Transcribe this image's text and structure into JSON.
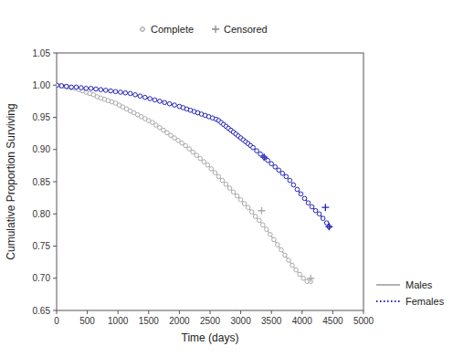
{
  "chart_data": {
    "type": "line",
    "x_label": "Time (days)",
    "y_label": "Cumulative Proportion Surviving",
    "xlim": [
      0,
      5000
    ],
    "ylim": [
      0.65,
      1.05
    ],
    "xticks": [
      0,
      500,
      1000,
      1500,
      2000,
      2500,
      3000,
      3500,
      4000,
      4500,
      5000
    ],
    "yticks": [
      0.65,
      {
        "value": 0.7,
        "label": "0.70"
      },
      0.75,
      {
        "value": 0.8,
        "label": "0.80"
      },
      0.85,
      {
        "value": 0.9,
        "label": "0.90"
      },
      0.95,
      {
        "value": 1.0,
        "label": "1.00"
      },
      1.05
    ],
    "grid": false,
    "legend": "right",
    "legend_markers": [
      {
        "label": "Complete",
        "marker": "circle"
      },
      {
        "label": "Censored",
        "marker": "plus"
      }
    ],
    "series": [
      {
        "name": "Males",
        "color": "#aaaaaa",
        "line_style": "solid",
        "marker": "circle",
        "x": [
          0,
          60,
          120,
          180,
          240,
          300,
          360,
          420,
          480,
          540,
          600,
          660,
          720,
          780,
          840,
          900,
          960,
          1020,
          1080,
          1140,
          1200,
          1260,
          1320,
          1380,
          1440,
          1500,
          1560,
          1620,
          1680,
          1740,
          1800,
          1860,
          1920,
          1980,
          2040,
          2100,
          2160,
          2220,
          2280,
          2340,
          2400,
          2460,
          2520,
          2580,
          2640,
          2700,
          2760,
          2820,
          2880,
          2940,
          3000,
          3060,
          3120,
          3180,
          3240,
          3300,
          3360,
          3420,
          3480,
          3540,
          3600,
          3660,
          3720,
          3780,
          3840,
          3900,
          3960,
          4020,
          4080,
          4140
        ],
        "values": [
          1.0,
          0.999,
          0.998,
          0.997,
          0.996,
          0.995,
          0.993,
          0.991,
          0.989,
          0.987,
          0.985,
          0.982,
          0.98,
          0.978,
          0.976,
          0.974,
          0.972,
          0.969,
          0.966,
          0.963,
          0.96,
          0.957,
          0.954,
          0.951,
          0.948,
          0.945,
          0.942,
          0.938,
          0.934,
          0.93,
          0.926,
          0.922,
          0.918,
          0.914,
          0.91,
          0.906,
          0.901,
          0.896,
          0.891,
          0.886,
          0.881,
          0.876,
          0.87,
          0.864,
          0.858,
          0.852,
          0.846,
          0.84,
          0.834,
          0.828,
          0.822,
          0.816,
          0.81,
          0.803,
          0.796,
          0.79,
          0.783,
          0.776,
          0.768,
          0.76,
          0.752,
          0.744,
          0.736,
          0.728,
          0.72,
          0.713,
          0.706,
          0.7,
          0.695,
          0.695
        ],
        "censored_x": [
          3340,
          4140
        ],
        "censored_values": [
          0.805,
          0.7
        ]
      },
      {
        "name": "Females",
        "color": "#2222bb",
        "line_style": "dotted",
        "marker": "circle",
        "x": [
          0,
          80,
          160,
          240,
          320,
          400,
          480,
          560,
          640,
          720,
          800,
          880,
          960,
          1040,
          1120,
          1200,
          1280,
          1360,
          1440,
          1520,
          1600,
          1680,
          1760,
          1840,
          1920,
          2000,
          2060,
          2120,
          2180,
          2240,
          2300,
          2360,
          2420,
          2480,
          2540,
          2600,
          2640,
          2680,
          2720,
          2760,
          2800,
          2840,
          2880,
          2920,
          2960,
          3000,
          3040,
          3080,
          3120,
          3160,
          3200,
          3260,
          3320,
          3380,
          3440,
          3500,
          3560,
          3620,
          3680,
          3740,
          3800,
          3860,
          3920,
          3980,
          4040,
          4100,
          4160,
          4220,
          4280,
          4340,
          4400,
          4440
        ],
        "values": [
          1.0,
          0.999,
          0.998,
          0.997,
          0.997,
          0.996,
          0.995,
          0.995,
          0.994,
          0.993,
          0.992,
          0.991,
          0.99,
          0.989,
          0.988,
          0.987,
          0.985,
          0.983,
          0.981,
          0.979,
          0.977,
          0.975,
          0.973,
          0.971,
          0.969,
          0.967,
          0.965,
          0.963,
          0.961,
          0.959,
          0.957,
          0.955,
          0.953,
          0.951,
          0.949,
          0.947,
          0.945,
          0.942,
          0.939,
          0.936,
          0.933,
          0.93,
          0.927,
          0.924,
          0.921,
          0.918,
          0.915,
          0.912,
          0.909,
          0.906,
          0.903,
          0.898,
          0.893,
          0.888,
          0.883,
          0.878,
          0.873,
          0.868,
          0.863,
          0.858,
          0.852,
          0.845,
          0.838,
          0.831,
          0.824,
          0.817,
          0.811,
          0.805,
          0.8,
          0.793,
          0.786,
          0.78
        ],
        "censored_x": [
          3380,
          4380,
          4440
        ],
        "censored_values": [
          0.888,
          0.81,
          0.78
        ]
      }
    ]
  }
}
